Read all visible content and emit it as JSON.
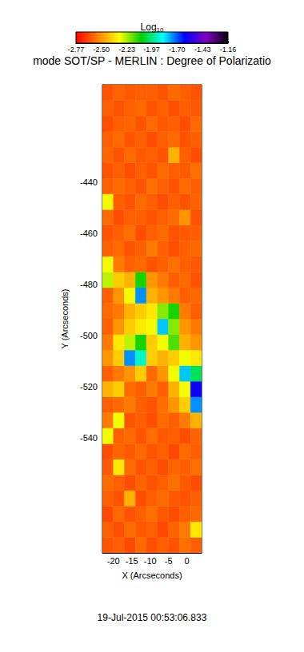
{
  "chart_data": {
    "type": "heatmap",
    "title": "mode SOT/SP - MERLIN : Degree of Polarizatio",
    "annotation": "19-Jul-2015 00:53:06.833",
    "x_label": "X (Arcseconds)",
    "y_label": "Y (Arcseconds)",
    "xlim": [
      -23,
      4
    ],
    "ylim": [
      -585,
      -402
    ],
    "xticks": [
      -20,
      -15,
      -10,
      -5,
      0
    ],
    "yticks": [
      -540,
      -520,
      -500,
      -480,
      -460,
      -440
    ],
    "grid": false,
    "x_edges": [
      -23,
      -20,
      -17,
      -14,
      -11,
      -8,
      -5,
      -2,
      1,
      4
    ],
    "y_edges": [
      -585,
      -578.9,
      -572.8,
      -566.7,
      -560.6,
      -554.5,
      -548.4,
      -542.3,
      -536.2,
      -530.1,
      -524,
      -517.9,
      -511.8,
      -505.7,
      -499.6,
      -493.5,
      -487.4,
      -481.3,
      -475.2,
      -469.1,
      -463,
      -456.9,
      -450.8,
      -444.7,
      -438.6,
      -432.5,
      -426.4,
      -420.3,
      -414.2,
      -408.1,
      -402
    ],
    "cells": [
      [
        -2.62,
        -2.6,
        -2.64,
        -2.58,
        -2.63,
        -2.6,
        -2.62,
        -2.57,
        -2.6
      ],
      [
        -2.6,
        -2.63,
        -2.58,
        -2.61,
        -2.6,
        -2.64,
        -2.59,
        -2.55,
        -2.35
      ],
      [
        -2.64,
        -2.58,
        -2.62,
        -2.6,
        -2.57,
        -2.61,
        -2.63,
        -2.6,
        -2.58
      ],
      [
        -2.6,
        -2.62,
        -2.45,
        -2.63,
        -2.6,
        -2.58,
        -2.61,
        -2.62,
        -2.6
      ],
      [
        -2.58,
        -2.6,
        -2.63,
        -2.59,
        -2.62,
        -2.6,
        -2.57,
        -2.61,
        -2.63
      ],
      [
        -2.61,
        -2.35,
        -2.58,
        -2.62,
        -2.6,
        -2.63,
        -2.59,
        -2.6,
        -2.57
      ],
      [
        -2.63,
        -2.59,
        -2.61,
        -2.58,
        -2.62,
        -2.6,
        -2.64,
        -2.58,
        -2.6
      ],
      [
        -2.3,
        -2.6,
        -2.58,
        -2.62,
        -2.57,
        -2.61,
        -2.6,
        -2.63,
        -2.59
      ],
      [
        -2.55,
        -2.3,
        -2.62,
        -2.6,
        -2.63,
        -2.58,
        -2.6,
        -2.55,
        -2.45
      ],
      [
        -2.6,
        -2.58,
        -2.55,
        -2.6,
        -2.62,
        -2.57,
        -2.5,
        -2.4,
        -1.75
      ],
      [
        -2.45,
        -2.4,
        -2.58,
        -2.6,
        -2.55,
        -2.6,
        -2.45,
        -2.3,
        -1.6
      ],
      [
        -2.6,
        -2.55,
        -2.5,
        -2.4,
        -2.58,
        -2.5,
        -2.3,
        -1.8,
        -2.0
      ],
      [
        -2.5,
        -2.4,
        -1.75,
        -1.9,
        -2.4,
        -2.45,
        -2.4,
        -2.3,
        -2.35
      ],
      [
        -2.55,
        -2.35,
        -2.25,
        -2.1,
        -2.4,
        -2.3,
        -2.15,
        -2.45,
        -2.5
      ],
      [
        -2.6,
        -2.5,
        -2.4,
        -2.35,
        -2.3,
        -1.8,
        -2.2,
        -2.5,
        -2.55
      ],
      [
        -2.58,
        -2.55,
        -2.45,
        -2.4,
        -2.35,
        -2.2,
        -2.1,
        -2.55,
        -2.6
      ],
      [
        -2.6,
        -2.5,
        -2.3,
        -1.75,
        -2.45,
        -2.5,
        -2.55,
        -2.6,
        -2.58
      ],
      [
        -2.25,
        -2.4,
        -2.45,
        -2.1,
        -2.5,
        -2.55,
        -2.6,
        -2.58,
        -2.62
      ],
      [
        -2.3,
        -2.55,
        -2.6,
        -2.58,
        -2.62,
        -2.6,
        -2.57,
        -2.6,
        -2.61
      ],
      [
        -2.6,
        -2.58,
        -2.62,
        -2.6,
        -2.55,
        -2.6,
        -2.63,
        -2.6,
        -2.58
      ],
      [
        -2.62,
        -2.6,
        -2.57,
        -2.63,
        -2.6,
        -2.58,
        -2.62,
        -2.61,
        -2.6
      ],
      [
        -2.58,
        -2.63,
        -2.6,
        -2.6,
        -2.62,
        -2.6,
        -2.58,
        -2.5,
        -2.62
      ],
      [
        -2.3,
        -2.6,
        -2.62,
        -2.58,
        -2.6,
        -2.63,
        -2.6,
        -2.62,
        -2.59
      ],
      [
        -2.6,
        -2.58,
        -2.6,
        -2.62,
        -2.57,
        -2.6,
        -2.62,
        -2.58,
        -2.6
      ],
      [
        -2.62,
        -2.6,
        -2.63,
        -2.6,
        -2.62,
        -2.58,
        -2.6,
        -2.61,
        -2.57
      ],
      [
        -2.59,
        -2.62,
        -2.58,
        -2.61,
        -2.6,
        -2.62,
        -2.45,
        -2.6,
        -2.63
      ],
      [
        -2.6,
        -2.58,
        -2.62,
        -2.6,
        -2.63,
        -2.6,
        -2.58,
        -2.62,
        -2.6
      ],
      [
        -2.63,
        -2.6,
        -2.59,
        -2.62,
        -2.58,
        -2.61,
        -2.6,
        -2.63,
        -2.58
      ],
      [
        -2.6,
        -2.62,
        -2.6,
        -2.58,
        -2.62,
        -2.6,
        -2.63,
        -2.6,
        -2.61
      ],
      [
        -2.62,
        -2.59,
        -2.61,
        -2.6,
        -2.6,
        -2.62,
        -2.58,
        -2.6,
        -2.62
      ]
    ],
    "colorbar": {
      "label": "Log10",
      "range": [
        -2.77,
        -1.16
      ],
      "ticks": [
        -2.77,
        {
          "value": -2.5,
          "label": "-2.50"
        },
        -2.23,
        -1.97,
        {
          "value": -1.7,
          "label": "-1.70"
        },
        -1.43,
        -1.16
      ]
    }
  }
}
